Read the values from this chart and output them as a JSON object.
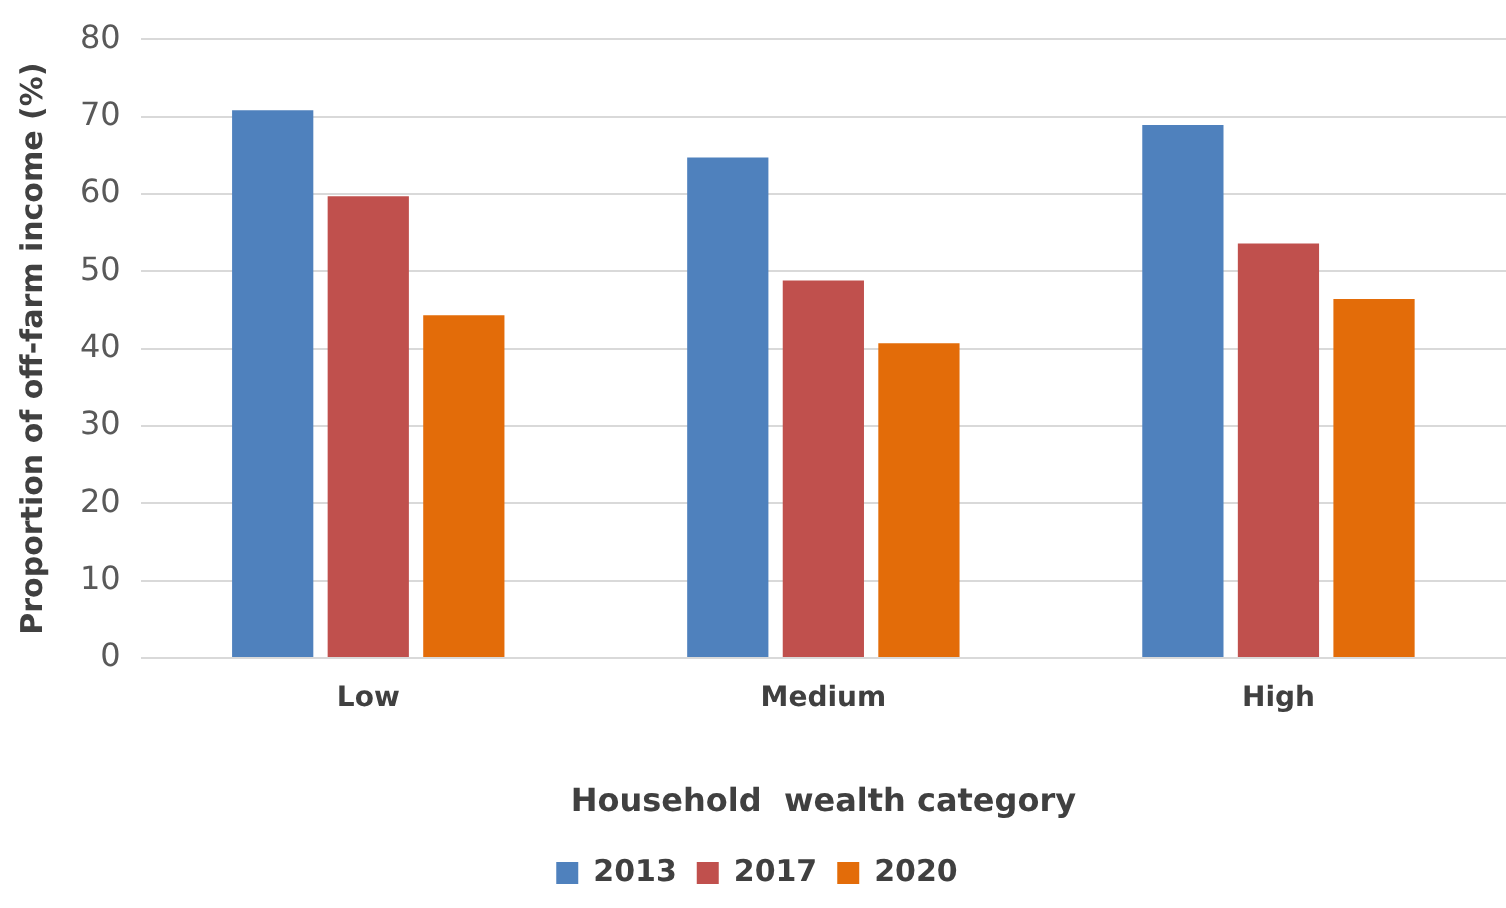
{
  "chart_data": {
    "type": "bar",
    "xlabel": "Household  wealth category",
    "ylabel": "Proportion of off-farm income (%)",
    "categories": [
      "Low",
      "Medium",
      "High"
    ],
    "series": [
      {
        "name": "2013",
        "color": "#4f81bd",
        "values": [
          70.8,
          64.7,
          68.9
        ]
      },
      {
        "name": "2017",
        "color": "#c0504d",
        "values": [
          59.7,
          48.8,
          53.6
        ]
      },
      {
        "name": "2020",
        "color": "#e36c09",
        "values": [
          44.3,
          40.7,
          46.4
        ]
      }
    ],
    "ylim": [
      0,
      80
    ],
    "yticks": [
      0,
      10,
      20,
      30,
      40,
      50,
      60,
      70,
      80
    ],
    "grid": "y",
    "legend": "bottom"
  }
}
